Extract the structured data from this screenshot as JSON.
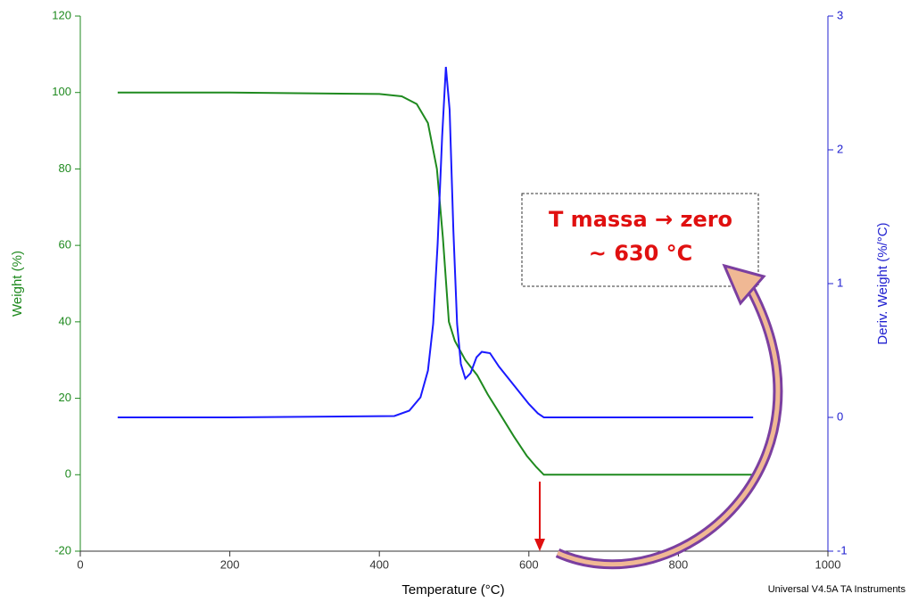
{
  "chart_data": {
    "type": "line",
    "x_label": "Temperature (°C)",
    "y_label": "Weight (%)",
    "y2_label": "Deriv. Weight (%/°C)",
    "footer": "Universal V4.5A TA Instruments",
    "annotation": [
      "T massa → zero",
      "~ 630 °C"
    ],
    "xlim": [
      0,
      1000
    ],
    "xticks": [
      0,
      200,
      400,
      600,
      800,
      1000
    ],
    "ylim": [
      -20,
      120
    ],
    "yticks": [
      -20,
      0,
      20,
      40,
      60,
      80,
      100,
      120
    ],
    "y2lim": [
      -1,
      3
    ],
    "y2ticks": [
      -1,
      0,
      1,
      2,
      3
    ],
    "axis_colors": {
      "x": "#333333",
      "y": "#1f8a1f",
      "y2": "#2020d0"
    },
    "series": [
      {
        "color": "#1f8a1f",
        "axis": "y",
        "x": [
          50,
          200,
          400,
          430,
          450,
          465,
          477,
          485,
          493,
          501,
          515,
          531,
          545,
          561,
          580,
          597,
          610,
          620,
          900
        ],
        "values": [
          100,
          100,
          99.6,
          99,
          97,
          92,
          80,
          62,
          40,
          35,
          30,
          26,
          21,
          16,
          10,
          5,
          2,
          0,
          0
        ]
      },
      {
        "color": "#1a1aff",
        "axis": "y2",
        "x": [
          50,
          200,
          420,
          440,
          455,
          465,
          472,
          478,
          484,
          489,
          494,
          499,
          504,
          509,
          515,
          522,
          530,
          537,
          548,
          560,
          580,
          600,
          612,
          620,
          900
        ],
        "values": [
          0,
          0,
          0.01,
          0.05,
          0.15,
          0.35,
          0.7,
          1.3,
          2.1,
          2.62,
          2.3,
          1.4,
          0.7,
          0.4,
          0.29,
          0.33,
          0.45,
          0.49,
          0.48,
          0.38,
          0.24,
          0.1,
          0.03,
          0,
          0
        ]
      }
    ]
  }
}
